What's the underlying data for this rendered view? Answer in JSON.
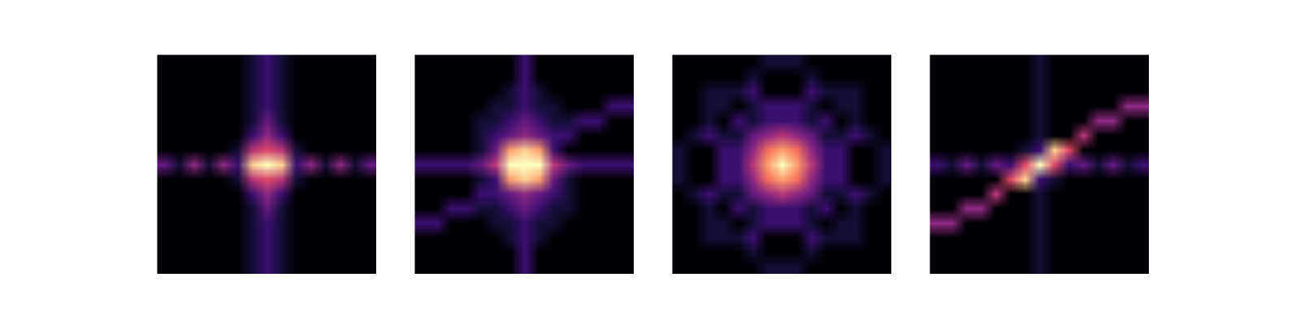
{
  "chart_data": [
    {
      "type": "heatmap",
      "color": "magma",
      "tick_labels": false,
      "color_range": [
        0,
        10
      ],
      "cells": [
        [
          0,
          0,
          0,
          0,
          0,
          0,
          1,
          2,
          1,
          0,
          0,
          0,
          0,
          0,
          0
        ],
        [
          0,
          0,
          0,
          0,
          0,
          0,
          1,
          2,
          1,
          0,
          0,
          0,
          0,
          0,
          0
        ],
        [
          0,
          0,
          0,
          0,
          0,
          0,
          1,
          2,
          1,
          0,
          0,
          0,
          0,
          0,
          0
        ],
        [
          0,
          0,
          0,
          0,
          0,
          0,
          1,
          2,
          1,
          0,
          0,
          0,
          0,
          0,
          0
        ],
        [
          0,
          0,
          0,
          0,
          0,
          0,
          1,
          3,
          1,
          0,
          0,
          0,
          0,
          0,
          0
        ],
        [
          0,
          0,
          0,
          0,
          0,
          0,
          2,
          4,
          2,
          0,
          0,
          0,
          0,
          0,
          0
        ],
        [
          0,
          0,
          0,
          0,
          0,
          1,
          5,
          6,
          5,
          1,
          0,
          0,
          0,
          0,
          0
        ],
        [
          3,
          1,
          4,
          1,
          4,
          2,
          9,
          10,
          9,
          2,
          4,
          1,
          4,
          1,
          3
        ],
        [
          0,
          0,
          0,
          0,
          0,
          1,
          5,
          6,
          5,
          1,
          0,
          0,
          0,
          0,
          0
        ],
        [
          0,
          0,
          0,
          0,
          0,
          0,
          2,
          4,
          2,
          0,
          0,
          0,
          0,
          0,
          0
        ],
        [
          0,
          0,
          0,
          0,
          0,
          0,
          1,
          3,
          1,
          0,
          0,
          0,
          0,
          0,
          0
        ],
        [
          0,
          0,
          0,
          0,
          0,
          0,
          1,
          2,
          1,
          0,
          0,
          0,
          0,
          0,
          0
        ],
        [
          0,
          0,
          0,
          0,
          0,
          0,
          1,
          2,
          1,
          0,
          0,
          0,
          0,
          0,
          0
        ],
        [
          0,
          0,
          0,
          0,
          0,
          0,
          1,
          2,
          1,
          0,
          0,
          0,
          0,
          0,
          0
        ],
        [
          0,
          0,
          0,
          0,
          0,
          0,
          1,
          2,
          1,
          0,
          0,
          0,
          0,
          0,
          0
        ]
      ]
    },
    {
      "type": "heatmap",
      "color": "magma",
      "tick_labels": false,
      "color_range": [
        0,
        10
      ],
      "cells": [
        [
          0,
          0,
          0,
          0,
          0,
          0,
          0,
          2,
          0,
          0,
          0,
          0,
          0,
          0,
          0
        ],
        [
          0,
          0,
          0,
          0,
          0,
          0,
          0,
          2,
          0,
          0,
          0,
          0,
          0,
          0,
          0
        ],
        [
          0,
          0,
          0,
          0,
          0,
          0,
          1,
          2,
          1,
          0,
          0,
          0,
          0,
          0,
          0
        ],
        [
          0,
          0,
          0,
          0,
          0,
          1,
          1,
          2,
          1,
          1,
          0,
          0,
          0,
          2,
          2
        ],
        [
          0,
          0,
          0,
          0,
          1,
          1,
          2,
          3,
          2,
          1,
          1,
          2,
          2,
          0,
          0
        ],
        [
          0,
          0,
          0,
          0,
          1,
          2,
          3,
          4,
          3,
          2,
          2,
          0,
          0,
          0,
          0
        ],
        [
          0,
          0,
          0,
          0,
          1,
          3,
          8,
          9,
          8,
          2,
          0,
          0,
          0,
          0,
          0
        ],
        [
          2,
          2,
          2,
          2,
          3,
          5,
          10,
          10,
          10,
          5,
          3,
          2,
          2,
          2,
          2
        ],
        [
          0,
          0,
          0,
          0,
          1,
          2,
          8,
          9,
          8,
          3,
          1,
          0,
          0,
          0,
          0
        ],
        [
          0,
          0,
          0,
          0,
          2,
          2,
          3,
          4,
          3,
          2,
          1,
          0,
          0,
          0,
          0
        ],
        [
          0,
          0,
          2,
          2,
          1,
          1,
          2,
          3,
          2,
          1,
          1,
          0,
          0,
          0,
          0
        ],
        [
          2,
          2,
          0,
          0,
          0,
          1,
          1,
          2,
          1,
          1,
          0,
          0,
          0,
          0,
          0
        ],
        [
          0,
          0,
          0,
          0,
          0,
          0,
          1,
          2,
          1,
          0,
          0,
          0,
          0,
          0,
          0
        ],
        [
          0,
          0,
          0,
          0,
          0,
          0,
          0,
          2,
          0,
          0,
          0,
          0,
          0,
          0,
          0
        ],
        [
          0,
          0,
          0,
          0,
          0,
          0,
          0,
          2,
          0,
          0,
          0,
          0,
          0,
          0,
          0
        ]
      ]
    },
    {
      "type": "heatmap",
      "color": "magma",
      "tick_labels": false,
      "color_range": [
        0,
        10
      ],
      "cells": [
        [
          0,
          0,
          0,
          0,
          0,
          0,
          1,
          1,
          1,
          0,
          0,
          0,
          0,
          0,
          0
        ],
        [
          0,
          0,
          0,
          0,
          0,
          1,
          0,
          0,
          0,
          1,
          0,
          0,
          0,
          0,
          0
        ],
        [
          0,
          0,
          1,
          1,
          1,
          2,
          0,
          0,
          0,
          2,
          1,
          1,
          1,
          0,
          0
        ],
        [
          0,
          0,
          1,
          1,
          0,
          1,
          2,
          2,
          2,
          1,
          0,
          1,
          1,
          0,
          0
        ],
        [
          0,
          0,
          1,
          0,
          2,
          1,
          2,
          2,
          2,
          1,
          2,
          0,
          1,
          0,
          0
        ],
        [
          0,
          1,
          2,
          1,
          1,
          3,
          4,
          5,
          4,
          3,
          1,
          1,
          2,
          1,
          0
        ],
        [
          1,
          0,
          0,
          2,
          2,
          4,
          7,
          8,
          7,
          4,
          2,
          2,
          0,
          0,
          1
        ],
        [
          1,
          0,
          0,
          2,
          2,
          5,
          8,
          10,
          8,
          5,
          2,
          2,
          0,
          0,
          1
        ],
        [
          1,
          0,
          0,
          2,
          2,
          4,
          7,
          8,
          7,
          4,
          2,
          2,
          0,
          0,
          1
        ],
        [
          0,
          1,
          2,
          1,
          1,
          3,
          4,
          5,
          4,
          3,
          1,
          1,
          2,
          1,
          0
        ],
        [
          0,
          0,
          1,
          0,
          2,
          1,
          2,
          2,
          2,
          1,
          2,
          0,
          1,
          0,
          0
        ],
        [
          0,
          0,
          1,
          1,
          0,
          1,
          2,
          2,
          2,
          1,
          0,
          1,
          1,
          0,
          0
        ],
        [
          0,
          0,
          1,
          1,
          1,
          2,
          0,
          0,
          0,
          2,
          1,
          1,
          1,
          0,
          0
        ],
        [
          0,
          0,
          0,
          0,
          0,
          1,
          0,
          0,
          0,
          1,
          0,
          0,
          0,
          0,
          0
        ],
        [
          0,
          0,
          0,
          0,
          0,
          0,
          1,
          1,
          1,
          0,
          0,
          0,
          0,
          0,
          0
        ]
      ]
    },
    {
      "type": "heatmap",
      "color": "magma",
      "tick_labels": false,
      "color_range": [
        0,
        10
      ],
      "cells": [
        [
          0,
          0,
          0,
          0,
          0,
          0,
          0,
          1,
          0,
          0,
          0,
          0,
          0,
          0,
          0
        ],
        [
          0,
          0,
          0,
          0,
          0,
          0,
          0,
          1,
          0,
          0,
          0,
          0,
          0,
          0,
          0
        ],
        [
          0,
          0,
          0,
          0,
          0,
          0,
          0,
          1,
          0,
          0,
          0,
          0,
          0,
          0,
          0
        ],
        [
          0,
          0,
          0,
          0,
          0,
          0,
          0,
          1,
          0,
          0,
          0,
          0,
          0,
          4,
          4
        ],
        [
          0,
          0,
          0,
          0,
          0,
          0,
          0,
          1,
          0,
          0,
          0,
          4,
          4,
          0,
          0
        ],
        [
          0,
          0,
          0,
          0,
          0,
          0,
          0,
          1,
          0,
          0,
          5,
          0,
          0,
          0,
          0
        ],
        [
          0,
          0,
          0,
          0,
          0,
          0,
          1,
          2,
          9,
          6,
          0,
          0,
          0,
          0,
          0
        ],
        [
          2,
          1,
          3,
          1,
          3,
          2,
          6,
          10,
          6,
          2,
          3,
          1,
          3,
          1,
          2
        ],
        [
          0,
          0,
          0,
          0,
          0,
          6,
          9,
          2,
          1,
          0,
          0,
          0,
          0,
          0,
          0
        ],
        [
          0,
          0,
          0,
          0,
          5,
          0,
          0,
          1,
          0,
          0,
          0,
          0,
          0,
          0,
          0
        ],
        [
          0,
          0,
          4,
          4,
          0,
          0,
          0,
          1,
          0,
          0,
          0,
          0,
          0,
          0,
          0
        ],
        [
          4,
          4,
          0,
          0,
          0,
          0,
          0,
          1,
          0,
          0,
          0,
          0,
          0,
          0,
          0
        ],
        [
          0,
          0,
          0,
          0,
          0,
          0,
          0,
          1,
          0,
          0,
          0,
          0,
          0,
          0,
          0
        ],
        [
          0,
          0,
          0,
          0,
          0,
          0,
          0,
          1,
          0,
          0,
          0,
          0,
          0,
          0,
          0
        ],
        [
          0,
          0,
          0,
          0,
          0,
          0,
          0,
          1,
          0,
          0,
          0,
          0,
          0,
          0,
          0
        ]
      ]
    }
  ]
}
